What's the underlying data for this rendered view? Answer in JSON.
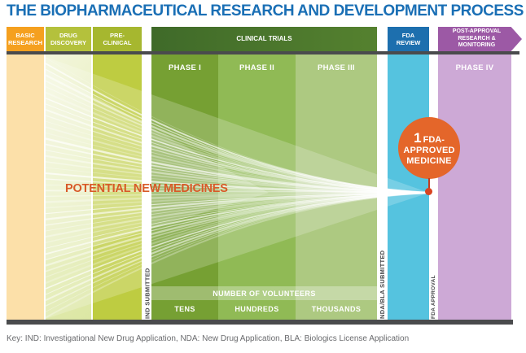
{
  "title": "THE BIOPHARMACEUTICAL RESEARCH AND DEVELOPMENT PROCESS",
  "stages": [
    {
      "label": "BASIC\nRESEARCH",
      "color": "#F5A01F"
    },
    {
      "label": "DRUG\nDISCOVERY",
      "color": "#B4C13C"
    },
    {
      "label": "PRE-\nCLINICAL",
      "color": "#A6B72F"
    },
    {
      "label": "CLINICAL TRIALS",
      "color": "#456F2D"
    },
    {
      "label": "FDA\nREVIEW",
      "color": "#1D6FAE"
    },
    {
      "label": "POST-APPROVAL\nRESEARCH &\nMONITORING",
      "color": "#9C59A5"
    }
  ],
  "phases": [
    {
      "label": "PHASE I",
      "column_color": "#76A033"
    },
    {
      "label": "PHASE II",
      "column_color": "#90BA55"
    },
    {
      "label": "PHASE III",
      "column_color": "#ADC981"
    },
    {
      "label": "PHASE IV",
      "column_color": "#CDA9D6"
    }
  ],
  "funnel": {
    "label": "POTENTIAL NEW MEDICINES",
    "text_color": "#D85A28"
  },
  "milestones": [
    {
      "label": "IND SUBMITTED"
    },
    {
      "label": "NDA/BLA SUBMITTED"
    },
    {
      "label": "FDA APPROVAL"
    }
  ],
  "badge": {
    "number": "1",
    "line1": "FDA-",
    "line2": "APPROVED",
    "line3": "MEDICINE",
    "color": "#E4662A"
  },
  "volunteers": {
    "title": "NUMBER OF VOLUNTEERS",
    "labels": [
      "TENS",
      "HUNDREDS",
      "THOUSANDS"
    ]
  },
  "key": {
    "text": "Key: IND: Investigational New Drug Application, NDA: New Drug Application, BLA: Biologics License Application"
  },
  "colors": {
    "title_blue": "#1A6FB5",
    "basic_column": "#FCE0A9",
    "discovery_column": "#E3ECB4",
    "preclinical_column": "#BECC41",
    "fda_column": "#55C3DF",
    "phase4_column": "#CDA9D6",
    "dark_bar": "#4A4B4D",
    "accent_orange": "#E4662A"
  }
}
